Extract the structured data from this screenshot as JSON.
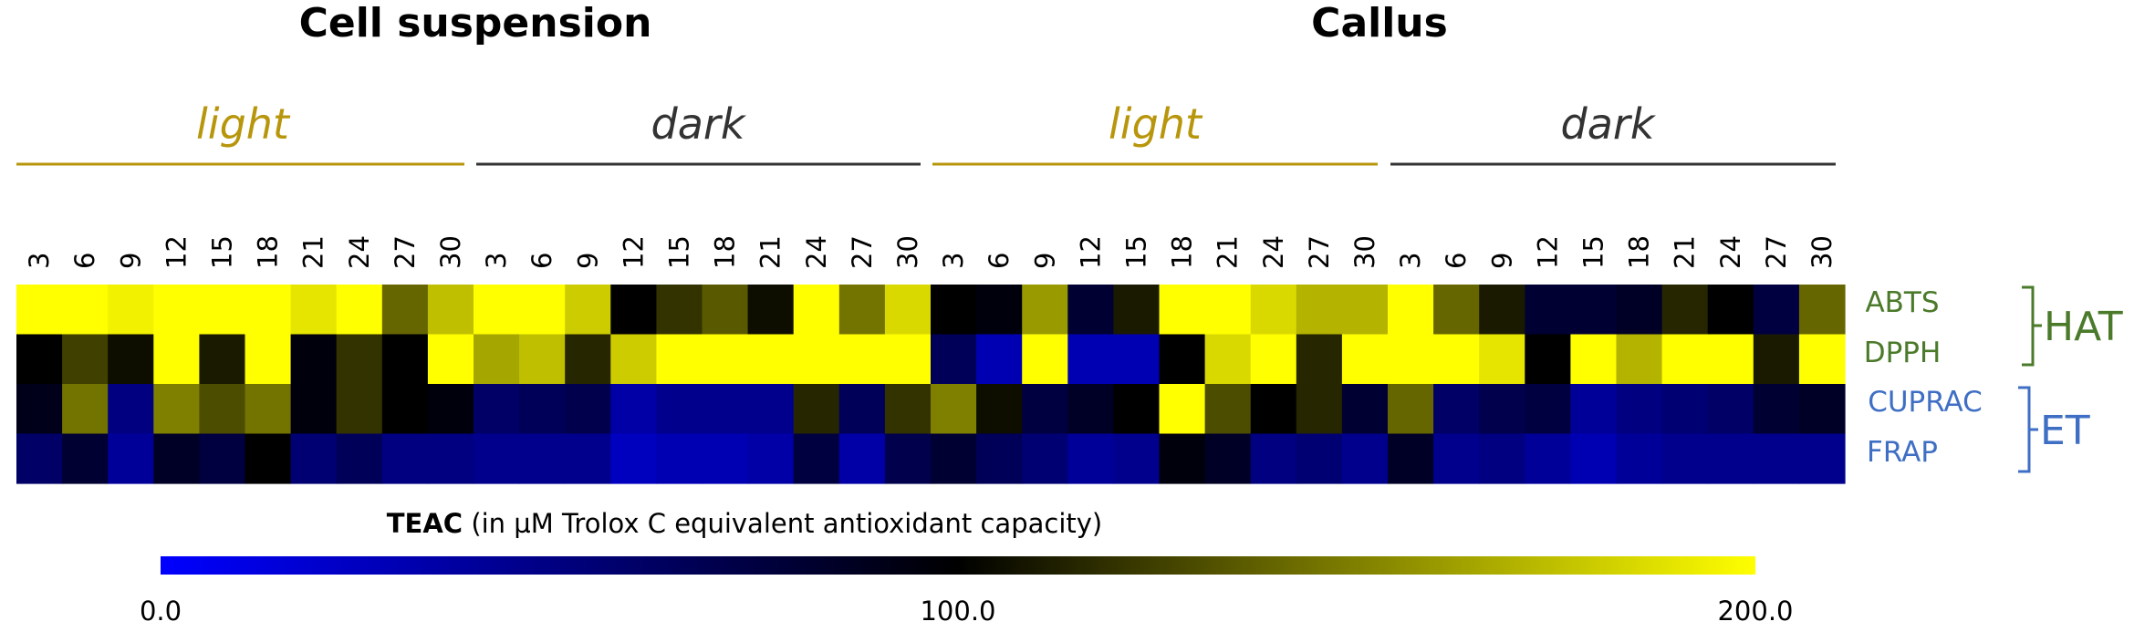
{
  "chart_data": {
    "type": "heatmap",
    "title": "",
    "groups": [
      "Cell suspension",
      "Callus"
    ],
    "conditions": [
      {
        "label": "light",
        "color": "#b8960c"
      },
      {
        "label": "dark",
        "color": "#222222"
      },
      {
        "label": "light",
        "color": "#b8960c"
      },
      {
        "label": "dark",
        "color": "#222222"
      }
    ],
    "x_ticks": [
      "3",
      "6",
      "9",
      "12",
      "15",
      "18",
      "21",
      "24",
      "27",
      "30"
    ],
    "rows": [
      {
        "label": "ABTS",
        "color": "#4a7a2a"
      },
      {
        "label": "DPPH",
        "color": "#4a7a2a"
      },
      {
        "label": "CUPRAC",
        "color": "#3f6fc4"
      },
      {
        "label": "FRAP",
        "color": "#3f6fc4"
      }
    ],
    "row_groups": [
      {
        "label": "HAT",
        "color": "#4a7a2a",
        "rows": [
          "ABTS",
          "DPPH"
        ]
      },
      {
        "label": "ET",
        "color": "#3f6fc4",
        "rows": [
          "CUPRAC",
          "FRAP"
        ]
      }
    ],
    "values": [
      [
        200,
        200,
        195,
        200,
        200,
        200,
        190,
        200,
        140,
        175,
        200,
        200,
        180,
        100,
        120,
        135,
        105,
        200,
        145,
        185,
        100,
        95,
        160,
        80,
        110,
        200,
        200,
        185,
        170,
        170,
        200,
        140,
        110,
        80,
        80,
        85,
        115,
        100,
        75,
        140
      ],
      [
        100,
        125,
        105,
        200,
        110,
        200,
        95,
        120,
        100,
        200,
        165,
        175,
        115,
        180,
        200,
        200,
        200,
        200,
        200,
        200,
        65,
        30,
        200,
        30,
        30,
        100,
        185,
        200,
        115,
        200,
        200,
        200,
        190,
        100,
        200,
        170,
        200,
        200,
        110,
        200
      ],
      [
        90,
        145,
        50,
        150,
        130,
        145,
        95,
        120,
        100,
        95,
        60,
        65,
        70,
        35,
        45,
        45,
        45,
        115,
        65,
        120,
        150,
        105,
        75,
        85,
        100,
        200,
        130,
        100,
        115,
        80,
        140,
        60,
        70,
        75,
        40,
        50,
        55,
        60,
        80,
        85
      ],
      [
        60,
        80,
        40,
        85,
        75,
        100,
        55,
        65,
        50,
        50,
        45,
        45,
        45,
        25,
        30,
        30,
        35,
        75,
        35,
        70,
        80,
        65,
        55,
        40,
        45,
        95,
        85,
        50,
        55,
        45,
        85,
        45,
        50,
        40,
        30,
        40,
        45,
        45,
        45,
        45
      ]
    ],
    "colorbar": {
      "title_bold": "TEAC",
      "title_rest": "(in µM Trolox C equivalent antioxidant capacity)",
      "min": 0,
      "max": 200,
      "colors": [
        "#0000ff",
        "#000000",
        "#ffff00"
      ],
      "tick_labels": [
        "0.0",
        "100.0",
        "200.0"
      ]
    }
  }
}
